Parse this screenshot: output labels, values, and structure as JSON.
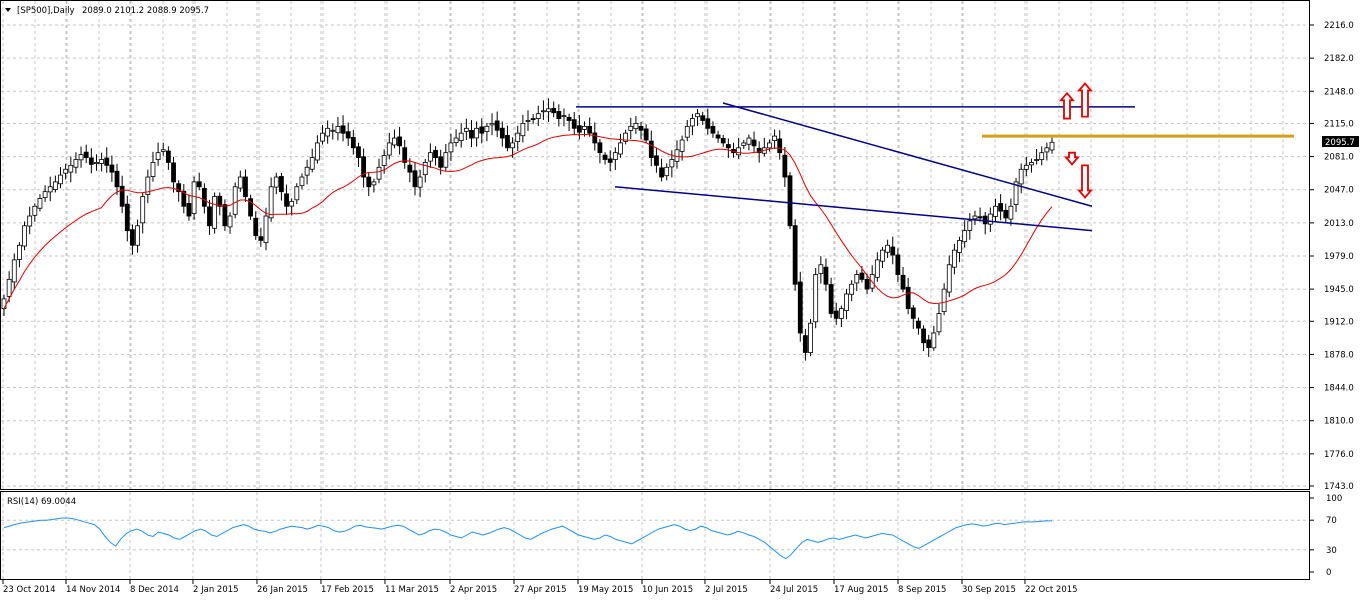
{
  "header": {
    "symbol_text": "[SP500],Daily",
    "ohlc_text": "2089.0 2101.2 2088.9 2095.7",
    "current_price_label": "2095.7"
  },
  "rsi_panel": {
    "label": "RSI(14) 69.0044"
  },
  "colors": {
    "candle": "#000000",
    "moving_average": "#e00000",
    "trendline": "#00008b",
    "resistance_level": "#d4a017",
    "arrow": "#e00000",
    "rsi_line": "#1e90ff",
    "grid": "#c6c6c6"
  },
  "chart_data": [
    {
      "type": "candlestick",
      "title": "[SP500],Daily",
      "y_ticks": [
        "2216.0",
        "2182.0",
        "2148.0",
        "2115.0",
        "2081.0",
        "2047.0",
        "2013.0",
        "1979.0",
        "1945.0",
        "1912.0",
        "1878.0",
        "1844.0",
        "1810.0",
        "1776.0",
        "1743.0"
      ],
      "x_ticks": [
        "23 Oct 2014",
        "14 Nov 2014",
        "8 Dec 2014",
        "2 Jan 2015",
        "26 Jan 2015",
        "17 Feb 2015",
        "11 Mar 2015",
        "2 Apr 2015",
        "27 Apr 2015",
        "19 May 2015",
        "10 Jun 2015",
        "2 Jul 2015",
        "24 Jul 2015",
        "17 Aug 2015",
        "8 Sep 2015",
        "30 Sep 2015",
        "22 Oct 2015"
      ],
      "ylim": [
        1743,
        2216
      ],
      "last": {
        "open": 2089.0,
        "high": 2101.2,
        "low": 2088.9,
        "close": 2095.7
      },
      "grid": true,
      "closes": [
        1935,
        1955,
        1975,
        1990,
        2010,
        2020,
        2030,
        2038,
        2045,
        2050,
        2055,
        2062,
        2068,
        2072,
        2078,
        2083,
        2080,
        2073,
        2075,
        2078,
        2072,
        2065,
        2050,
        2030,
        2005,
        1990,
        2010,
        2040,
        2060,
        2075,
        2085,
        2088,
        2075,
        2055,
        2045,
        2030,
        2020,
        2055,
        2050,
        2030,
        2010,
        2040,
        2030,
        2010,
        2020,
        2050,
        2060,
        2040,
        2020,
        2000,
        1995,
        2020,
        2050,
        2060,
        2045,
        2030,
        2035,
        2050,
        2060,
        2070,
        2080,
        2095,
        2105,
        2110,
        2108,
        2112,
        2105,
        2100,
        2090,
        2080,
        2060,
        2050,
        2055,
        2070,
        2082,
        2095,
        2100,
        2092,
        2075,
        2065,
        2050,
        2060,
        2075,
        2085,
        2080,
        2070,
        2085,
        2095,
        2100,
        2105,
        2110,
        2100,
        2110,
        2105,
        2112,
        2115,
        2108,
        2100,
        2090,
        2095,
        2105,
        2115,
        2118,
        2120,
        2125,
        2128,
        2130,
        2126,
        2120,
        2123,
        2118,
        2110,
        2106,
        2112,
        2105,
        2095,
        2085,
        2078,
        2075,
        2085,
        2095,
        2105,
        2112,
        2115,
        2108,
        2098,
        2080,
        2072,
        2060,
        2070,
        2078,
        2088,
        2098,
        2112,
        2120,
        2125,
        2118,
        2110,
        2105,
        2100,
        2095,
        2090,
        2085,
        2090,
        2095,
        2100,
        2092,
        2085,
        2090,
        2095,
        2102,
        2085,
        2060,
        2010,
        1950,
        1900,
        1880,
        1910,
        1960,
        1970,
        1950,
        1920,
        1915,
        1925,
        1940,
        1950,
        1960,
        1955,
        1945,
        1960,
        1975,
        1985,
        1990,
        1980,
        1960,
        1945,
        1925,
        1915,
        1905,
        1890,
        1885,
        1900,
        1920,
        1945,
        1970,
        1985,
        1995,
        2005,
        2015,
        2020,
        2018,
        2012,
        2022,
        2030,
        2025,
        2018,
        2030,
        2055,
        2068,
        2072,
        2075,
        2078,
        2085,
        2090,
        2095.7
      ],
      "moving_average": {
        "period": 20,
        "color": "#e00000"
      },
      "trendlines": [
        {
          "name": "horizontal-resistance",
          "points": [
            [
              "19 May 2015",
              2132
            ],
            [
              "end",
              2132
            ]
          ]
        },
        {
          "name": "descending-upper",
          "points": [
            [
              "2 Jul 2015",
              2136
            ],
            [
              "end",
              2030
            ]
          ]
        },
        {
          "name": "descending-lower",
          "points": [
            [
              "19 May 2015",
              2050
            ],
            [
              "end",
              2005
            ]
          ]
        }
      ],
      "levels": [
        {
          "name": "resistance",
          "value": 2102
        }
      ],
      "arrows": [
        {
          "direction": "up",
          "from": 2120,
          "to": 2146
        },
        {
          "direction": "up",
          "from": 2122,
          "to": 2156
        },
        {
          "direction": "down",
          "from": 2085,
          "to": 2073
        },
        {
          "direction": "down",
          "from": 2072,
          "to": 2039
        }
      ]
    },
    {
      "type": "line",
      "title": "RSI(14) 69.0044",
      "y_ticks": [
        "100",
        "70",
        "30",
        "0"
      ],
      "ylim": [
        0,
        100
      ],
      "last_value": 69.0044,
      "series": [
        {
          "name": "RSI(14)",
          "values": [
            60,
            62,
            64,
            66,
            67,
            68,
            69,
            70,
            70,
            71,
            72,
            73,
            73,
            72,
            70,
            68,
            66,
            64,
            58,
            48,
            40,
            35,
            45,
            52,
            56,
            58,
            55,
            50,
            48,
            54,
            52,
            50,
            46,
            44,
            48,
            52,
            56,
            58,
            55,
            50,
            48,
            52,
            56,
            60,
            62,
            64,
            62,
            58,
            56,
            55,
            53,
            55,
            58,
            60,
            62,
            61,
            60,
            58,
            60,
            63,
            62,
            60,
            56,
            54,
            55,
            58,
            62,
            63,
            61,
            60,
            59,
            58,
            60,
            62,
            63,
            62,
            58,
            54,
            50,
            52,
            56,
            58,
            57,
            54,
            50,
            48,
            46,
            50,
            54,
            52,
            50,
            52,
            55,
            58,
            60,
            58,
            54,
            50,
            46,
            44,
            48,
            52,
            55,
            58,
            60,
            62,
            58,
            54,
            50,
            48,
            46,
            44,
            46,
            50,
            48,
            44,
            42,
            40,
            38,
            42,
            46,
            50,
            54,
            58,
            60,
            62,
            64,
            62,
            58,
            56,
            58,
            62,
            60,
            56,
            54,
            52,
            50,
            52,
            55,
            53,
            50,
            48,
            44,
            40,
            34,
            28,
            22,
            18,
            24,
            32,
            40,
            44,
            42,
            40,
            42,
            45,
            46,
            44,
            46,
            48,
            50,
            48,
            46,
            48,
            50,
            52,
            51,
            50,
            46,
            42,
            38,
            34,
            32,
            36,
            40,
            44,
            48,
            52,
            56,
            60,
            62,
            64,
            65,
            64,
            62,
            63,
            65,
            66,
            64,
            65,
            66,
            67,
            68,
            67.5,
            68,
            68.5,
            69,
            69.0044
          ]
        }
      ]
    }
  ]
}
